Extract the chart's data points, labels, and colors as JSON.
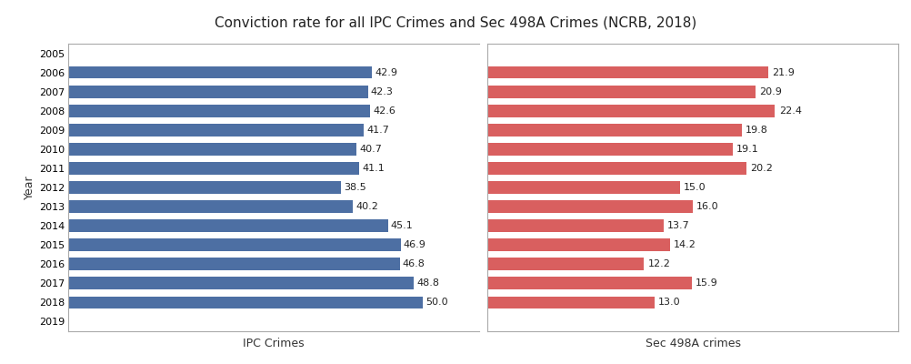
{
  "title": "Conviction rate for all IPC Crimes and Sec 498A Crimes (NCRB, 2018)",
  "years": [
    "2005",
    "2006",
    "2007",
    "2008",
    "2009",
    "2010",
    "2011",
    "2012",
    "2013",
    "2014",
    "2015",
    "2016",
    "2017",
    "2018",
    "2019"
  ],
  "ipc_values": [
    null,
    42.9,
    42.3,
    42.6,
    41.7,
    40.7,
    41.1,
    38.5,
    40.2,
    45.1,
    46.9,
    46.8,
    48.8,
    50.0,
    null
  ],
  "sec498a_values": [
    null,
    21.9,
    20.9,
    22.4,
    19.8,
    19.1,
    20.2,
    15.0,
    16.0,
    13.7,
    14.2,
    12.2,
    15.9,
    13.0,
    null
  ],
  "ipc_color": "#4d6fa3",
  "sec498a_color": "#d95f5f",
  "ipc_label": "IPC Crimes",
  "sec498a_label": "Sec 498A crimes",
  "ylabel": "Year",
  "title_fontsize": 11,
  "label_fontsize": 9,
  "tick_fontsize": 8,
  "value_fontsize": 8,
  "bar_height": 0.65,
  "background_color": "#ffffff",
  "plot_bg_color": "#ffffff",
  "border_color": "#aaaaaa",
  "ipc_xlim": 58,
  "sec498a_xlim": 32
}
